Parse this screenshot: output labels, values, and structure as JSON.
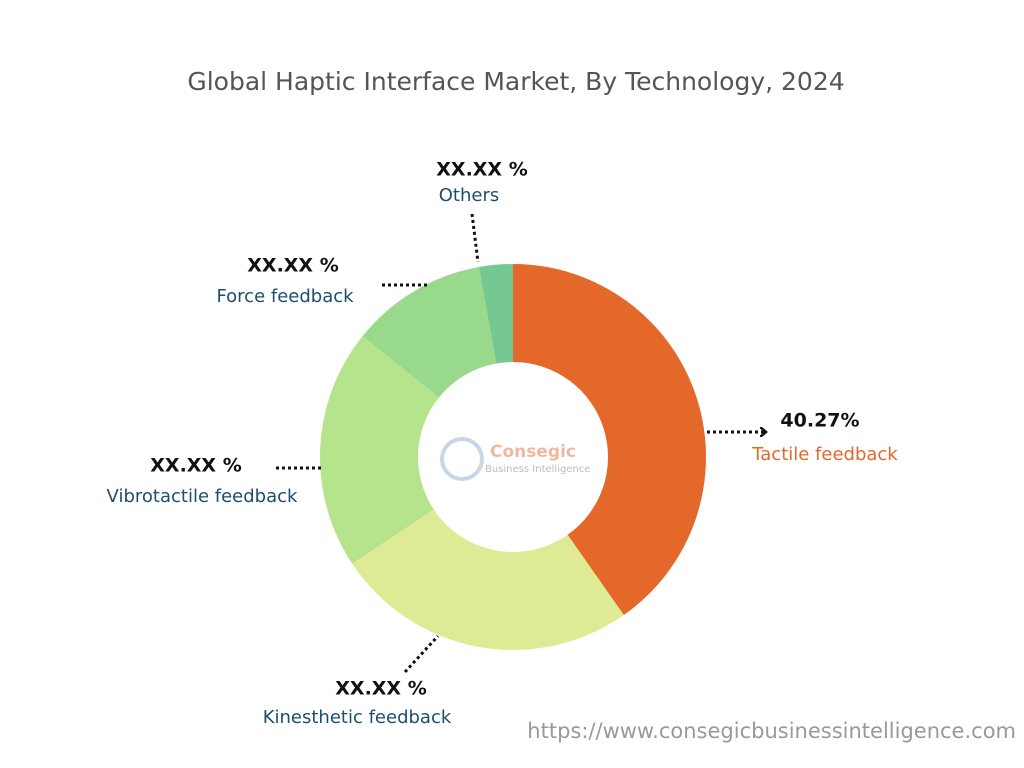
{
  "chart_data": {
    "type": "donut",
    "title": "Global Haptic Interface Market, By Technology, 2024",
    "categories": [
      "Tactile feedback",
      "Kinesthetic feedback",
      "Vibrotactile feedback",
      "Force feedback",
      "Others"
    ],
    "values": [
      40.27,
      25.4,
      20.1,
      11.4,
      2.83
    ],
    "value_labels": [
      "40.27%",
      "XX.XX %",
      "XX.XX %",
      "XX.XX %",
      "XX.XX %"
    ],
    "colors": [
      "#e4682a",
      "#dfeb94",
      "#b5e48c",
      "#99d98c",
      "#76c893"
    ],
    "watermark": {
      "name": "Consegic",
      "subtitle": "Business Intelligence"
    },
    "source": "https://www.consegicbusinessintelligence.com"
  }
}
